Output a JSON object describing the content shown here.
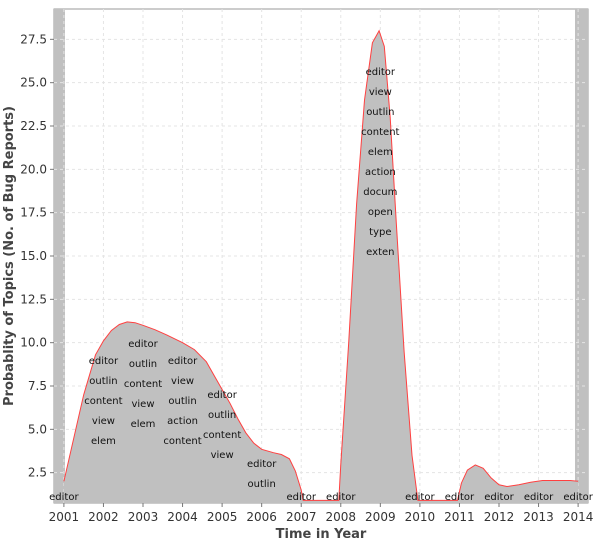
{
  "chart_data": {
    "type": "area",
    "xlabel": "Time in Year",
    "ylabel": "Probablity of Topics (No. of Bug Reports)",
    "xlim": [
      2000.75,
      2014.25
    ],
    "ylim": [
      0.75,
      29.25
    ],
    "x_ticks": [
      "2001",
      "2002",
      "2003",
      "2004",
      "2005",
      "2006",
      "2007",
      "2008",
      "2009",
      "2010",
      "2011",
      "2012",
      "2013",
      "2014"
    ],
    "y_ticks": [
      "2.5",
      "5.0",
      "7.5",
      "10.0",
      "12.5",
      "15.0",
      "17.5",
      "20.0",
      "22.5",
      "25.0",
      "27.5"
    ],
    "grid": true,
    "fill_color": "#c0c0c0",
    "line_color": "#ff4040",
    "series": [
      {
        "points": [
          [
            2001.0,
            2.0
          ],
          [
            2001.2,
            4.0
          ],
          [
            2001.5,
            7.0
          ],
          [
            2001.8,
            9.3
          ],
          [
            2002.0,
            10.1
          ],
          [
            2002.2,
            10.7
          ],
          [
            2002.4,
            11.05
          ],
          [
            2002.6,
            11.2
          ],
          [
            2002.8,
            11.15
          ],
          [
            2003.0,
            11.0
          ],
          [
            2003.3,
            10.75
          ],
          [
            2003.6,
            10.45
          ],
          [
            2004.0,
            10.0
          ],
          [
            2004.3,
            9.6
          ],
          [
            2004.6,
            8.9
          ],
          [
            2004.8,
            8.1
          ],
          [
            2005.0,
            7.3
          ],
          [
            2005.2,
            6.5
          ],
          [
            2005.4,
            5.6
          ],
          [
            2005.6,
            4.8
          ],
          [
            2005.8,
            4.2
          ],
          [
            2006.0,
            3.85
          ],
          [
            2006.3,
            3.65
          ],
          [
            2006.5,
            3.55
          ],
          [
            2006.7,
            3.3
          ],
          [
            2006.85,
            2.6
          ],
          [
            2007.0,
            1.5
          ],
          [
            2007.05,
            0.9
          ],
          [
            2007.95,
            0.9
          ],
          [
            2008.0,
            3.0
          ],
          [
            2008.2,
            10.0
          ],
          [
            2008.4,
            18.0
          ],
          [
            2008.6,
            24.0
          ],
          [
            2008.8,
            27.3
          ],
          [
            2008.97,
            28.0
          ],
          [
            2009.1,
            27.1
          ],
          [
            2009.25,
            23.0
          ],
          [
            2009.4,
            17.0
          ],
          [
            2009.6,
            9.5
          ],
          [
            2009.8,
            3.5
          ],
          [
            2009.95,
            0.9
          ],
          [
            2010.95,
            0.9
          ],
          [
            2011.05,
            1.9
          ],
          [
            2011.2,
            2.65
          ],
          [
            2011.4,
            2.95
          ],
          [
            2011.6,
            2.75
          ],
          [
            2011.8,
            2.2
          ],
          [
            2012.0,
            1.8
          ],
          [
            2012.2,
            1.7
          ],
          [
            2012.5,
            1.8
          ],
          [
            2012.8,
            1.95
          ],
          [
            2013.1,
            2.05
          ],
          [
            2013.5,
            2.05
          ],
          [
            2013.8,
            2.05
          ],
          [
            2014.0,
            2.0
          ]
        ]
      }
    ],
    "annotations": [
      {
        "year": 2001,
        "terms": [
          "editor"
        ]
      },
      {
        "year": 2002,
        "terms": [
          "editor",
          "outlin",
          "content",
          "view",
          "elem"
        ]
      },
      {
        "year": 2003,
        "terms": [
          "editor",
          "outlin",
          "content",
          "view",
          "elem"
        ]
      },
      {
        "year": 2004,
        "terms": [
          "editor",
          "view",
          "outlin",
          "action",
          "content"
        ]
      },
      {
        "year": 2005,
        "terms": [
          "editor",
          "outlin",
          "content",
          "view"
        ]
      },
      {
        "year": 2006,
        "terms": [
          "editor",
          "outlin"
        ]
      },
      {
        "year": 2007,
        "terms": [
          "editor"
        ]
      },
      {
        "year": 2008,
        "terms": [
          "editor"
        ]
      },
      {
        "year": 2009,
        "terms": [
          "editor",
          "view",
          "outlin",
          "content",
          "elem",
          "action",
          "docum",
          "open",
          "type",
          "exten"
        ]
      },
      {
        "year": 2010,
        "terms": [
          "editor"
        ]
      },
      {
        "year": 2011,
        "terms": [
          "editor"
        ]
      },
      {
        "year": 2012,
        "terms": [
          "editor"
        ]
      },
      {
        "year": 2013,
        "terms": [
          "editor"
        ]
      },
      {
        "year": 2014,
        "terms": [
          "editor"
        ]
      }
    ]
  }
}
